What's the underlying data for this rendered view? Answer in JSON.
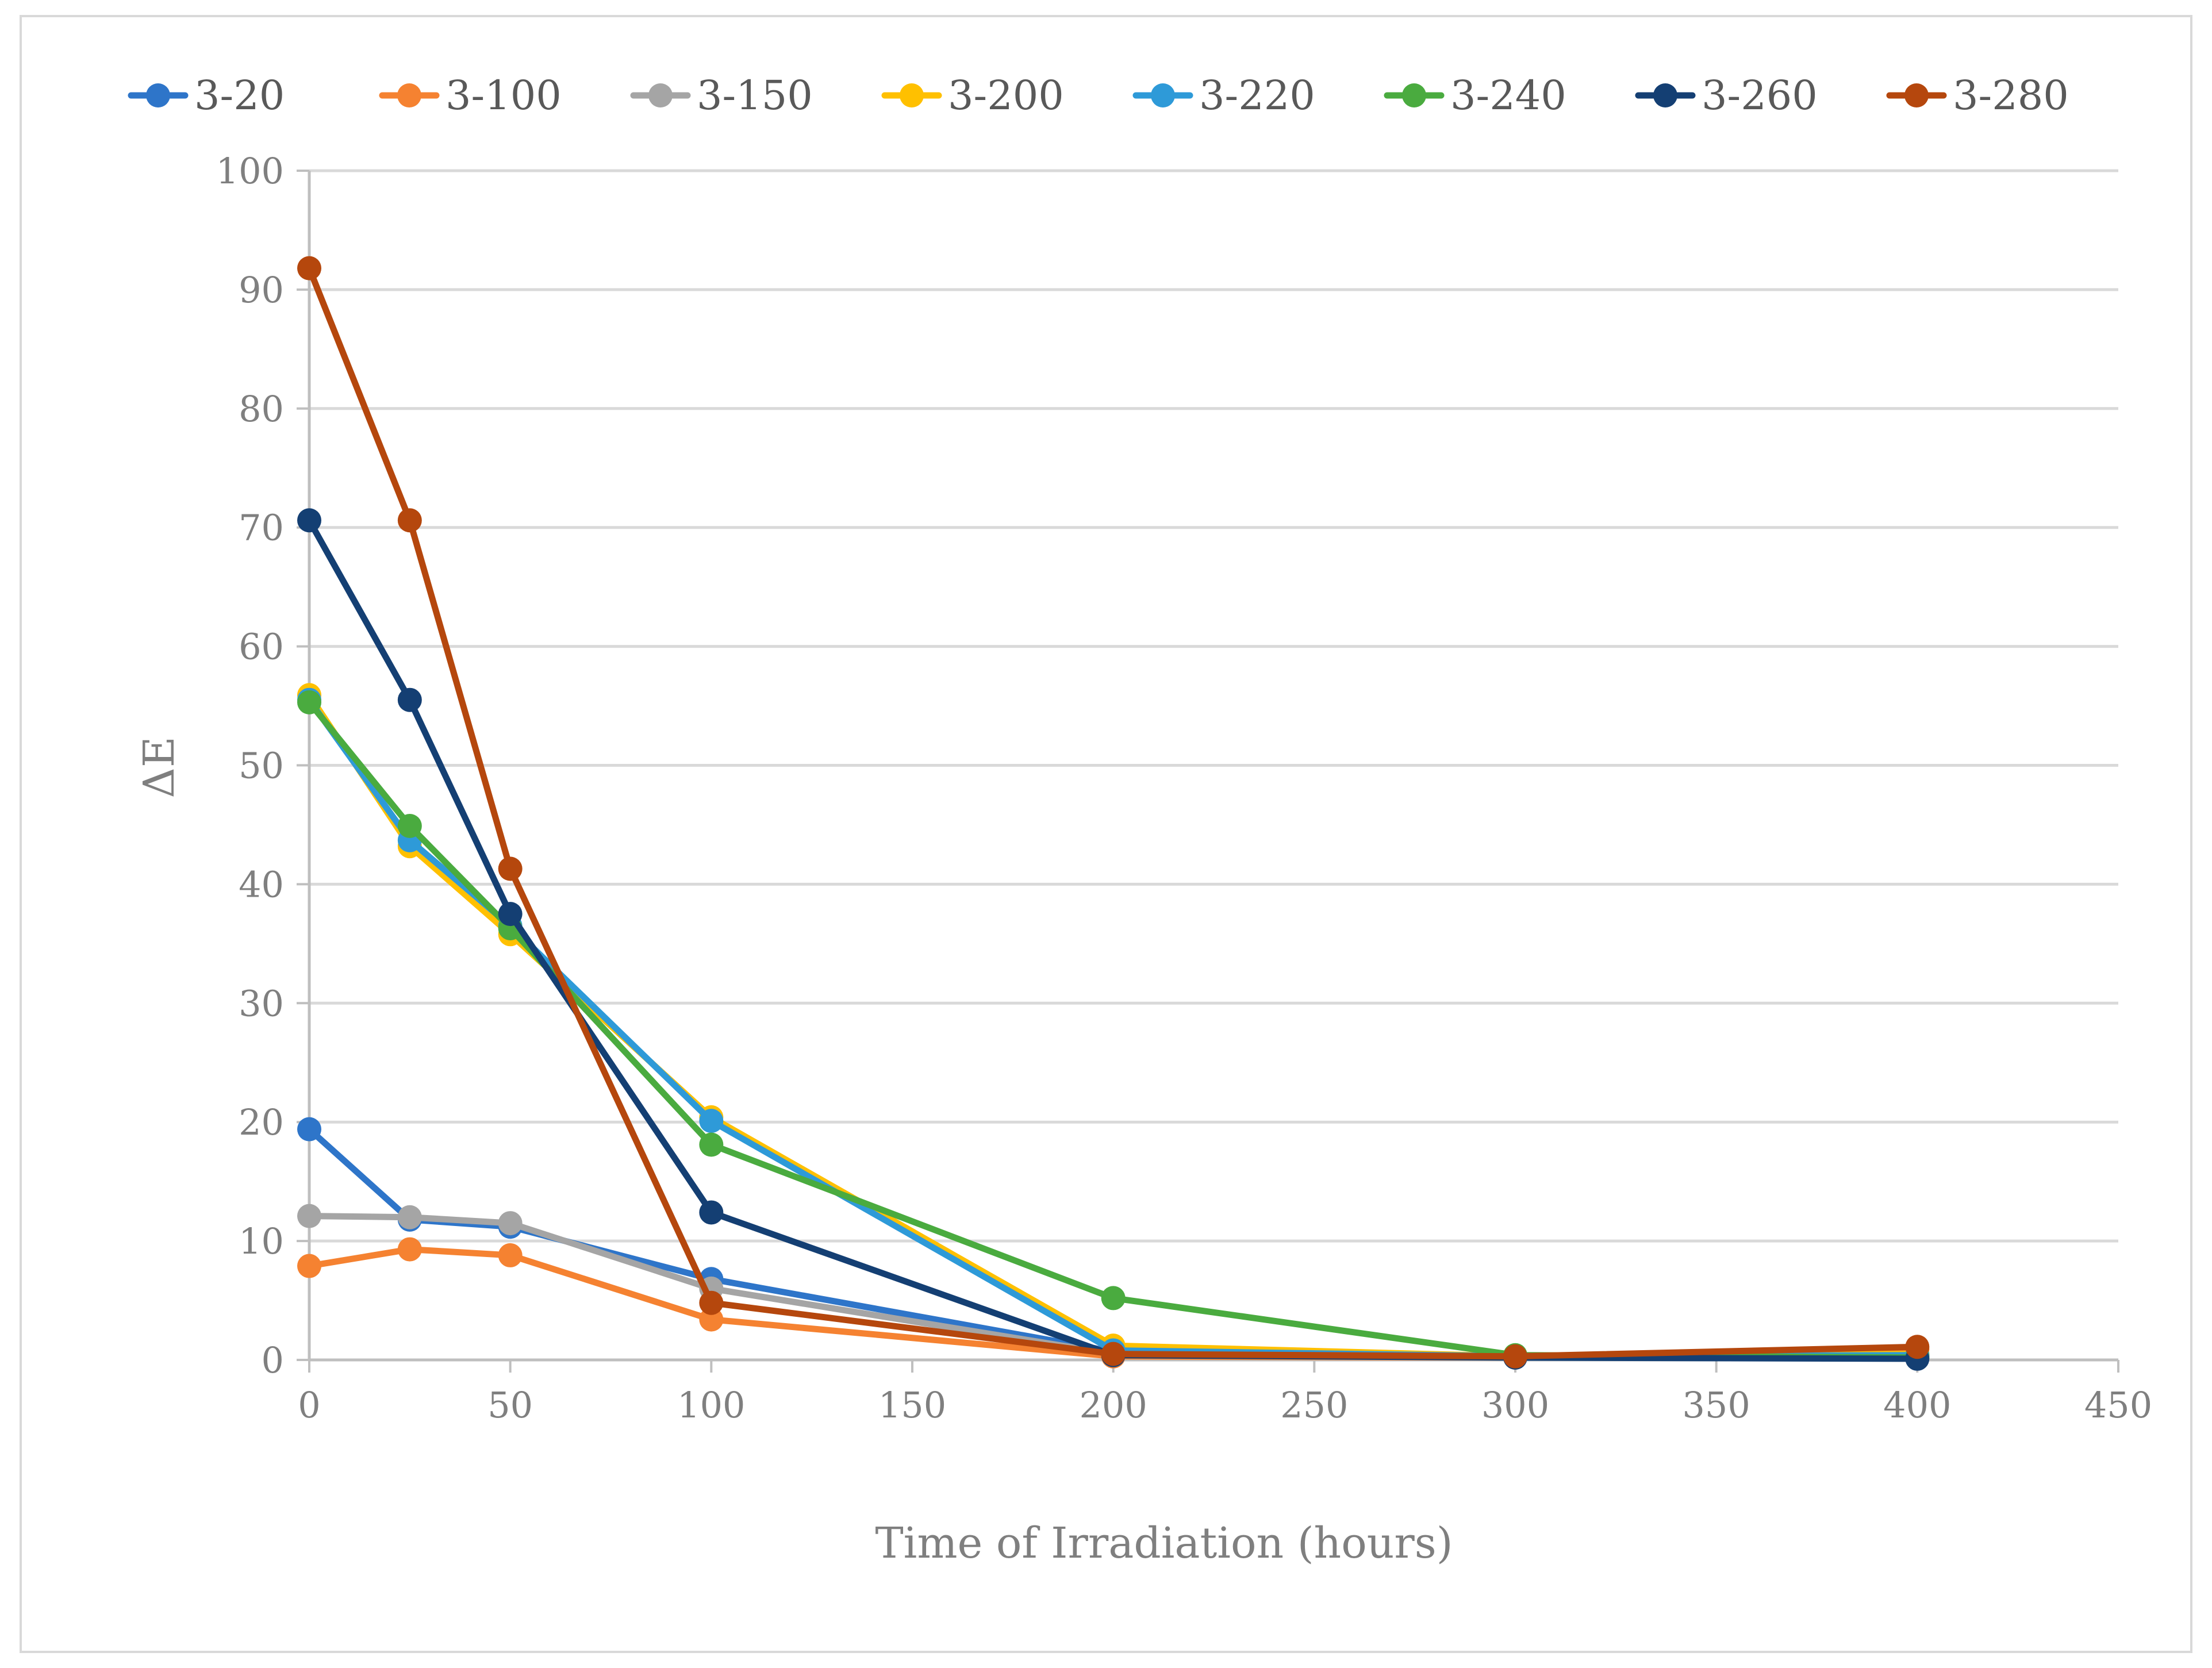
{
  "chart_data": {
    "type": "line",
    "title": "",
    "xlabel": "Time of Irradiation (hours)",
    "ylabel": "ΔE",
    "xlim": [
      0,
      450
    ],
    "ylim": [
      0,
      100
    ],
    "x_ticks": [
      "0",
      "50",
      "100",
      "150",
      "200",
      "250",
      "300",
      "350",
      "400",
      "450"
    ],
    "y_ticks": [
      "0",
      "10",
      "20",
      "30",
      "40",
      "50",
      "60",
      "70",
      "80",
      "90",
      "100"
    ],
    "grid": "horizontal",
    "legend_position": "top",
    "x": [
      0,
      25,
      50,
      100,
      200,
      300,
      400
    ],
    "series": [
      {
        "name": "3-20",
        "color": "#2e75c9",
        "values": [
          19.4,
          11.8,
          11.2,
          6.8,
          0.7,
          0.2,
          0.3
        ]
      },
      {
        "name": "3-100",
        "color": "#f58231",
        "values": [
          7.9,
          9.3,
          8.8,
          3.4,
          0.3,
          0.2,
          0.9
        ]
      },
      {
        "name": "3-150",
        "color": "#a5a5a5",
        "values": [
          12.1,
          12.0,
          11.5,
          6.0,
          0.5,
          0.2,
          0.4
        ]
      },
      {
        "name": "3-200",
        "color": "#ffc000",
        "values": [
          55.9,
          43.2,
          35.8,
          20.4,
          1.2,
          0.3,
          0.5
        ]
      },
      {
        "name": "3-220",
        "color": "#2e9ad8",
        "values": [
          55.5,
          43.7,
          36.5,
          20.1,
          0.8,
          0.3,
          0.4
        ]
      },
      {
        "name": "3-240",
        "color": "#4aab3f",
        "values": [
          55.3,
          44.9,
          36.3,
          18.1,
          5.2,
          0.4,
          0.2
        ]
      },
      {
        "name": "3-260",
        "color": "#143f73",
        "values": [
          70.6,
          55.5,
          37.5,
          12.4,
          0.4,
          0.2,
          0.1
        ]
      },
      {
        "name": "3-280",
        "color": "#b5470d",
        "values": [
          91.8,
          70.6,
          41.3,
          4.8,
          0.5,
          0.3,
          1.1
        ]
      }
    ]
  }
}
